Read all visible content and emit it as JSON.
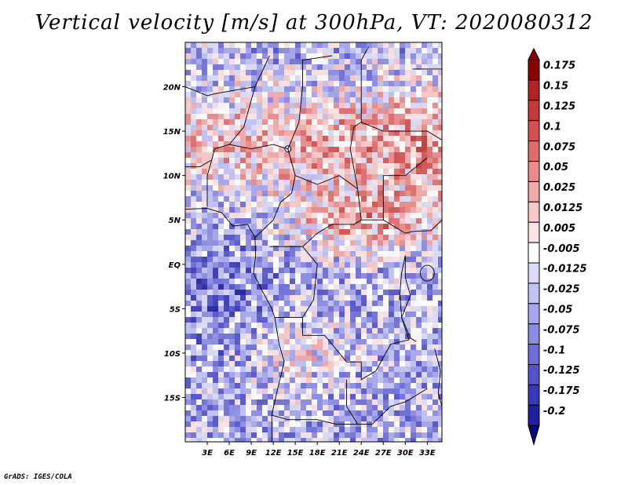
{
  "chart_data": {
    "type": "heatmap",
    "title": "Vertical velocity [m/s] at 300hPa, VT: 2020080312",
    "xlabel": "",
    "ylabel": "",
    "x_ticks": [
      "3E",
      "6E",
      "9E",
      "12E",
      "15E",
      "18E",
      "21E",
      "24E",
      "27E",
      "30E",
      "33E"
    ],
    "y_ticks": [
      "20N",
      "15N",
      "10N",
      "5N",
      "EQ",
      "5S",
      "10S",
      "15S"
    ],
    "x_range_deg": [
      0,
      35
    ],
    "y_range_deg": [
      -20,
      25
    ],
    "colorbar": {
      "levels": [
        "0.175",
        "0.15",
        "0.125",
        "0.1",
        "0.075",
        "0.05",
        "0.025",
        "0.0125",
        "0.005",
        "-0.005",
        "-0.0125",
        "-0.025",
        "-0.05",
        "-0.075",
        "-0.1",
        "-0.125",
        "-0.175",
        "-0.2"
      ],
      "colors": [
        "#8b0000",
        "#b22222",
        "#c43a3a",
        "#d45151",
        "#e06c6c",
        "#ea8a8a",
        "#f2a9a9",
        "#f8c8c8",
        "#fde4e4",
        "#ffffff",
        "#dcdcfa",
        "#c2c2f5",
        "#a6a6ee",
        "#8b8be6",
        "#6e6edb",
        "#5353cc",
        "#3838b8",
        "#1f1fa0",
        "#0a0a80"
      ]
    }
  },
  "credit": "GrADS: IGES/COLA"
}
